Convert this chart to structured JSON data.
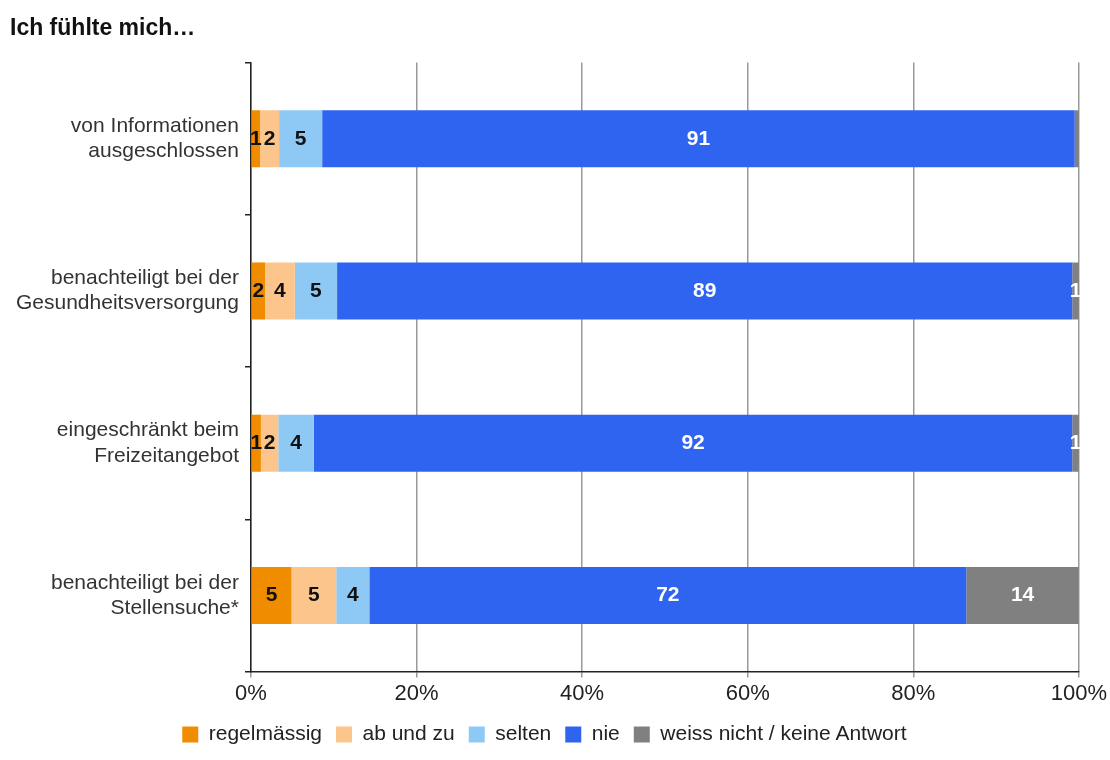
{
  "chart_data": {
    "type": "bar",
    "orientation": "horizontal",
    "stacked": true,
    "title": "Ich fühlte mich…",
    "categories": [
      "von Informationen\nausgeschlossen",
      "benachteiligt bei der\nGesundheitsversorgung",
      "eingeschränkt beim\nFreizeitangebot",
      "benachteiligt bei der\nStellensuche*"
    ],
    "series": [
      {
        "name": "regelmässig",
        "color": "#f08c00",
        "values": [
          1.1,
          1.7,
          1.2,
          4.9
        ],
        "value_labels": [
          "1",
          "2",
          "1",
          "5"
        ]
      },
      {
        "name": "ab und zu",
        "color": "#fcc58c",
        "values": [
          2.3,
          3.6,
          2.1,
          5.4
        ],
        "value_labels": [
          "2",
          "4",
          "2",
          "5"
        ]
      },
      {
        "name": "selten",
        "color": "#8ec8f5",
        "values": [
          5.2,
          5.1,
          4.3,
          4.0
        ],
        "value_labels": [
          "5",
          "5",
          "4",
          "4"
        ]
      },
      {
        "name": "nie",
        "color": "#2f64f0",
        "values": [
          90.9,
          88.8,
          91.6,
          72.1
        ],
        "value_labels": [
          "91",
          "89",
          "92",
          "72"
        ]
      },
      {
        "name": "weiss nicht / keine Antwort",
        "color": "#808080",
        "values": [
          0.5,
          0.8,
          0.8,
          13.6
        ],
        "value_labels": [
          null,
          "1",
          "1",
          "14"
        ]
      }
    ],
    "xlim": [
      0,
      100
    ],
    "xticks": [
      {
        "value": 0,
        "label": "0%"
      },
      {
        "value": 20,
        "label": "20%"
      },
      {
        "value": 40,
        "label": "40%"
      },
      {
        "value": 60,
        "label": "60%"
      },
      {
        "value": 80,
        "label": "80%"
      },
      {
        "value": 100,
        "label": "100%"
      }
    ],
    "grid": "x",
    "legend": "bottom"
  }
}
